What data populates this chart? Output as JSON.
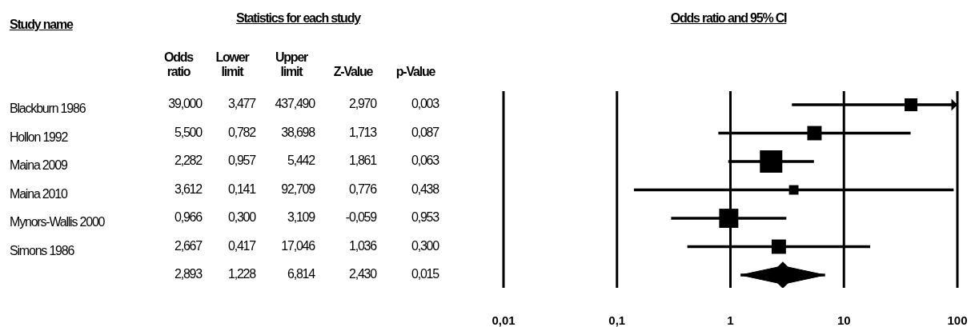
{
  "chart_data": [
    {
      "type": "other",
      "title": "Statistics for each study",
      "ylabel": "Study name",
      "categories": [
        "Odds ratio",
        "Lower limit",
        "Upper limit",
        "Z-Value",
        "p-Value"
      ],
      "y_categories": [
        "Blackburn 1986",
        "Hollon 1992",
        "Maina 2009",
        "Maina 2010",
        "Mynors-Wallis 2000",
        "Simons 1986",
        null
      ],
      "cell_labels": [
        [
          "39,000",
          "3,477",
          "437,490",
          "2,970",
          "0,003"
        ],
        [
          "5,500",
          "0,782",
          "38,698",
          "1,713",
          "0,087"
        ],
        [
          "2,282",
          "0,957",
          "5,442",
          "1,861",
          "0,063"
        ],
        [
          "3,612",
          "0,141",
          "92,709",
          "0,776",
          "0,438"
        ],
        [
          "0,966",
          "0,300",
          "3,109",
          "-0,059",
          "0,953"
        ],
        [
          "2,667",
          "0,417",
          "17,046",
          "1,036",
          "0,300"
        ],
        [
          "2,893",
          "1,228",
          "6,814",
          "2,430",
          "0,015"
        ]
      ]
    },
    {
      "type": "bubble",
      "title": "Odds ratio and 95% CI",
      "orientation": "horizontal",
      "categories": [
        null,
        null,
        null,
        null,
        null,
        null,
        null
      ],
      "log": "x",
      "xlim": [
        0.01,
        100
      ],
      "xticks": [
        {
          "value": 0.01,
          "label": "0,01"
        },
        {
          "value": 0.1,
          "label": "0,1"
        },
        1,
        10,
        100
      ],
      "grid": "x",
      "tick_labels": "x",
      "legend": false,
      "series": [
        {
          "type": "bubble",
          "marker": "square",
          "color": "#000000",
          "values": [
            39,
            5.5,
            2.282,
            3.612,
            0.966,
            2.667,
            null
          ],
          "sizes": [
            0.33,
            0.41,
            1,
            0.18,
            0.73,
            0.41,
            null
          ],
          "errors": [
            [
              3.477,
              437.49
            ],
            [
              0.782,
              38.698
            ],
            [
              0.957,
              5.442
            ],
            [
              0.141,
              92.709
            ],
            [
              0.3,
              3.109
            ],
            [
              0.417,
              17.046
            ],
            null
          ]
        },
        {
          "type": "scatter",
          "marker": "diamond",
          "color": "#000000",
          "values": [
            null,
            null,
            null,
            null,
            null,
            null,
            2.893
          ],
          "errors": [
            null,
            null,
            null,
            null,
            null,
            null,
            [
              1.228,
              6.814
            ]
          ]
        }
      ]
    }
  ]
}
